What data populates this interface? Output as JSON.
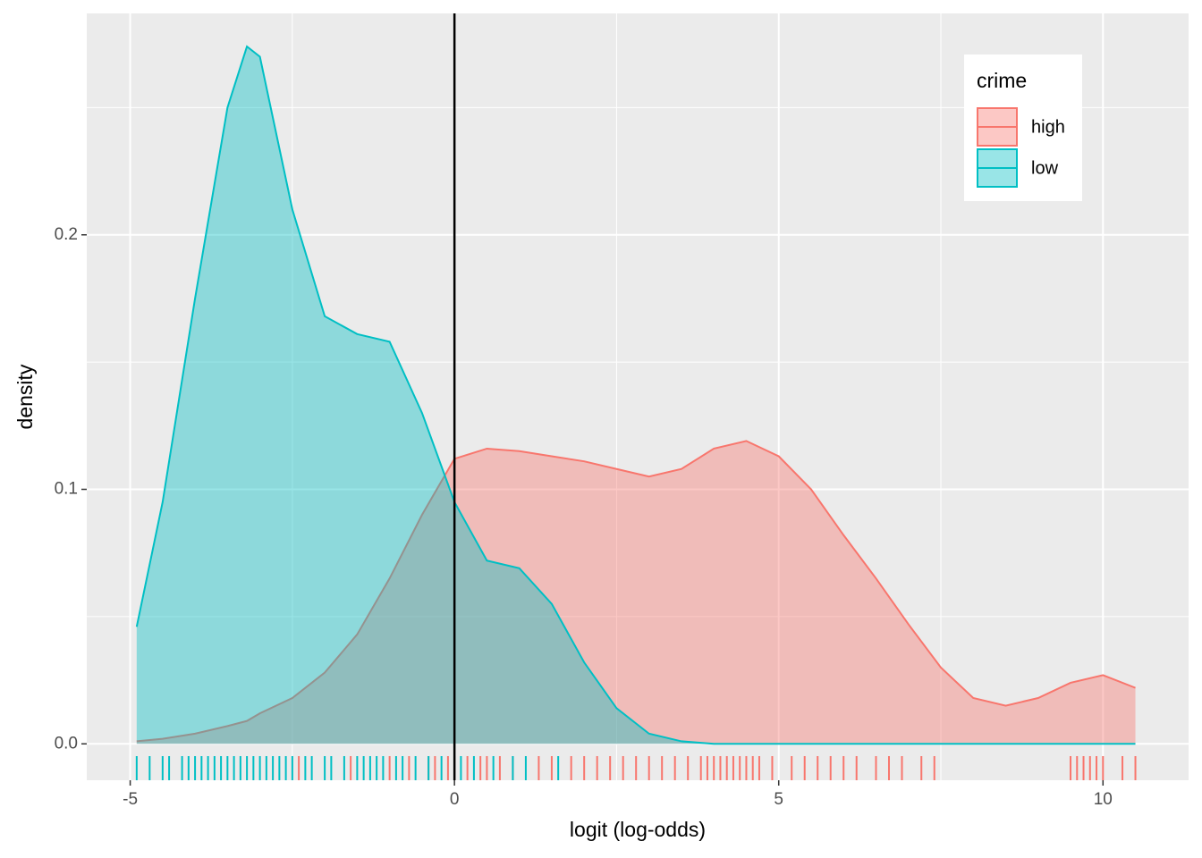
{
  "chart_data": {
    "type": "density",
    "x_label": "logit (log-odds)",
    "y_label": "density",
    "x": [
      -4.9,
      -4.5,
      -4,
      -3.5,
      -3.2,
      -3,
      -2.5,
      -2,
      -1.5,
      -1,
      -0.5,
      0,
      0.5,
      1,
      1.5,
      2,
      2.5,
      3,
      3.5,
      4,
      4.5,
      5,
      5.5,
      6,
      6.5,
      7,
      7.5,
      8,
      8.5,
      9,
      9.5,
      10,
      10.5
    ],
    "series": [
      {
        "name": "high",
        "color": "#F8766D",
        "values": [
          0.001,
          0.002,
          0.004,
          0.007,
          0.009,
          0.012,
          0.018,
          0.028,
          0.043,
          0.065,
          0.09,
          0.112,
          0.116,
          0.115,
          0.113,
          0.111,
          0.108,
          0.105,
          0.108,
          0.116,
          0.119,
          0.113,
          0.1,
          0.082,
          0.065,
          0.047,
          0.03,
          0.018,
          0.015,
          0.018,
          0.024,
          0.027,
          0.022
        ],
        "rug": [
          -2.4,
          -1.6,
          -1.0,
          -0.7,
          -0.4,
          -0.3,
          -0.1,
          0.0,
          0.2,
          0.4,
          0.5,
          0.7,
          0.9,
          1.3,
          1.5,
          1.8,
          2.0,
          2.2,
          2.4,
          2.6,
          2.8,
          3.0,
          3.2,
          3.4,
          3.6,
          3.8,
          3.9,
          4.0,
          4.1,
          4.2,
          4.3,
          4.4,
          4.5,
          4.6,
          4.7,
          4.9,
          5.2,
          5.4,
          5.6,
          5.8,
          6.0,
          6.2,
          6.5,
          6.7,
          6.9,
          7.2,
          7.4,
          9.5,
          9.6,
          9.7,
          9.8,
          9.9,
          10.0,
          10.3,
          10.5
        ]
      },
      {
        "name": "low",
        "color": "#00BFC4",
        "values": [
          0.046,
          0.095,
          0.175,
          0.25,
          0.274,
          0.27,
          0.21,
          0.168,
          0.161,
          0.158,
          0.13,
          0.095,
          0.072,
          0.069,
          0.055,
          0.032,
          0.014,
          0.004,
          0.001,
          0,
          0,
          0,
          0,
          0,
          0,
          0,
          0,
          0,
          0,
          0,
          0,
          0,
          0
        ],
        "rug": [
          -4.9,
          -4.7,
          -4.5,
          -4.4,
          -4.2,
          -4.1,
          -4.0,
          -3.9,
          -3.8,
          -3.7,
          -3.6,
          -3.5,
          -3.4,
          -3.3,
          -3.2,
          -3.1,
          -3.0,
          -2.9,
          -2.8,
          -2.7,
          -2.6,
          -2.5,
          -2.3,
          -2.2,
          -2.0,
          -1.9,
          -1.7,
          -1.5,
          -1.4,
          -1.3,
          -1.2,
          -1.1,
          -0.9,
          -0.8,
          -0.6,
          -0.4,
          -0.2,
          0.1,
          0.3,
          0.6,
          0.9,
          1.1,
          1.6
        ]
      }
    ],
    "vline": 0,
    "xlim": [
      -5.67,
      11.32
    ],
    "ylim": [
      -0.0143,
      0.287
    ],
    "xticks": [
      -5,
      0,
      5,
      10
    ],
    "yticks": [
      {
        "value": 0,
        "label": "0.0"
      },
      0.1,
      0.2
    ],
    "grid": true,
    "legend_title": "crime",
    "legend_position": "top-right"
  }
}
